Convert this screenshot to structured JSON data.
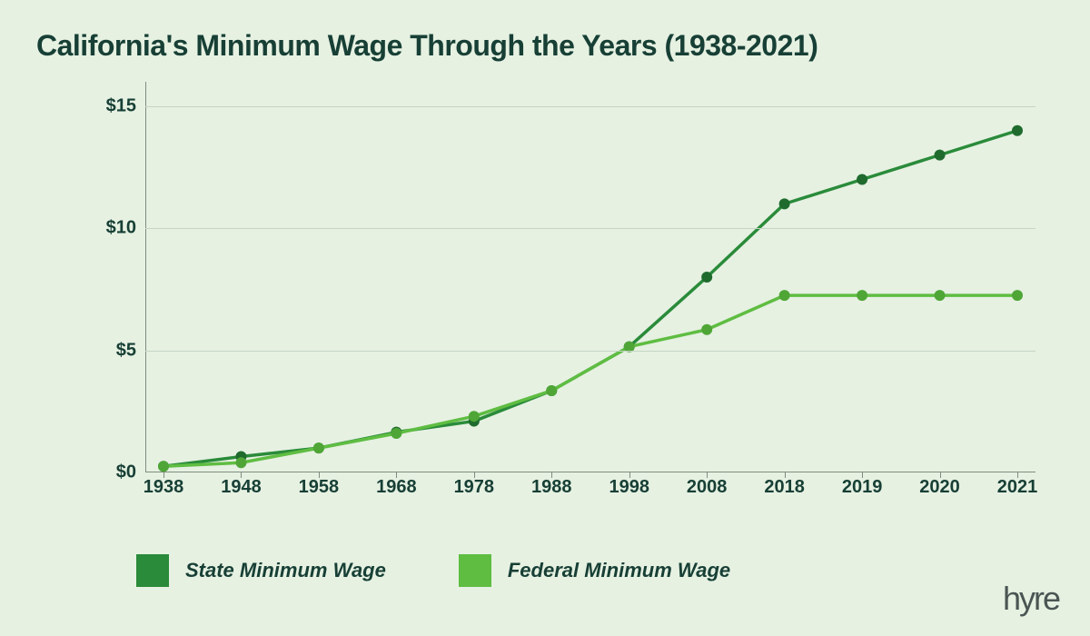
{
  "theme": {
    "background_color": "#e6f1e2",
    "title_color": "#173f35",
    "grid_color": "#c5d4c5",
    "axis_color": "#7f8c7f"
  },
  "title": "California's Minimum Wage Through the Years (1938-2021)",
  "chart": {
    "type": "line",
    "x_categories": [
      "1938",
      "1948",
      "1958",
      "1968",
      "1978",
      "1988",
      "1998",
      "2008",
      "2018",
      "2019",
      "2020",
      "2021"
    ],
    "y": {
      "min": 0,
      "max": 16,
      "ticks": [
        0,
        5,
        10,
        15
      ],
      "tick_labels": [
        "$0",
        "$5",
        "$10",
        "$15"
      ],
      "label_fontsize": 20
    },
    "x_label_fontsize": 20,
    "line_width": 3.5,
    "marker_radius": 6,
    "series": [
      {
        "name": "State Minimum Wage",
        "color": "#2a8b3a",
        "marker_color": "#1f6b2e",
        "values": [
          0.25,
          0.65,
          1.0,
          1.65,
          2.1,
          3.35,
          5.15,
          8.0,
          11.0,
          12.0,
          13.0,
          14.0
        ]
      },
      {
        "name": "Federal Minimum Wage",
        "color": "#5fbd42",
        "marker_color": "#4fa636",
        "values": [
          0.25,
          0.4,
          1.0,
          1.6,
          2.3,
          3.35,
          5.15,
          5.85,
          7.25,
          7.25,
          7.25,
          7.25
        ]
      }
    ]
  },
  "legend": {
    "items": [
      {
        "label": "State Minimum Wage",
        "color": "#2a8b3a"
      },
      {
        "label": "Federal Minimum Wage",
        "color": "#5fbd42"
      }
    ],
    "swatch_size": 36,
    "font_size": 22,
    "font_style": "italic",
    "font_weight": 700
  },
  "brand": "hyre"
}
